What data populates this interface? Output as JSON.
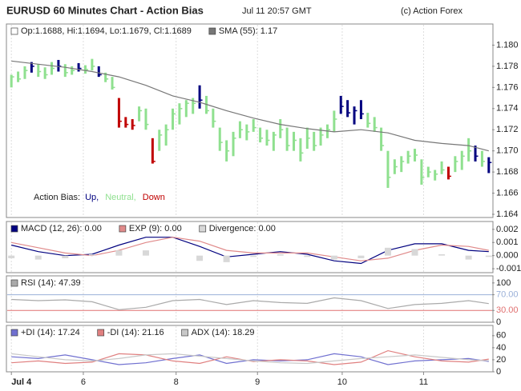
{
  "header": {
    "title": "EURUSD 60 Minutes Chart - Action Bias",
    "date": "Jul 11 20:57 GMT",
    "credit": "(c) Action Forex"
  },
  "x_axis": {
    "xlim": [
      -0.5,
      71.5
    ],
    "xticks": [
      {
        "value": 0,
        "label": "Jul 4"
      },
      {
        "value": 10.7,
        "label": "6"
      },
      {
        "value": 24.5,
        "label": "8"
      },
      {
        "value": 36.6,
        "label": "9"
      },
      {
        "value": 49.2,
        "label": "10"
      },
      {
        "value": 61.3,
        "label": "11"
      }
    ]
  },
  "chart_data": [
    {
      "type": "ohlc",
      "ohlc_label": "Op:1.1688, Hi:1.1694, Lo:1.1679, Cl:1.1689",
      "ylim": [
        1.1637,
        1.182
      ],
      "yticks": [
        1.164,
        1.166,
        1.168,
        {
          "value": 1.17,
          "label": "1.170"
        },
        1.172,
        1.174,
        1.176,
        1.178,
        {
          "value": 1.18,
          "label": "1.180"
        }
      ],
      "bias_legend": {
        "title": "Action Bias:",
        "entries": [
          {
            "label": "Up,",
            "color": "#00007f"
          },
          {
            "label": "Neutral,",
            "color": "#8fe08f"
          },
          {
            "label": "Down",
            "color": "#c00000"
          }
        ]
      },
      "low": [
        1.176,
        1.1765,
        1.1768,
        1.1774,
        1.177,
        1.1768,
        1.1772,
        1.1775,
        1.177,
        1.1772,
        1.1775,
        1.1773,
        1.1776,
        1.177,
        1.1765,
        1.1758,
        1.1722,
        1.1722,
        1.172,
        1.1728,
        1.172,
        1.1688,
        1.17,
        1.1705,
        1.172,
        1.1725,
        1.1732,
        1.1735,
        1.174,
        1.1735,
        1.1722,
        1.17,
        1.169,
        1.1695,
        1.1712,
        1.171,
        1.1718,
        1.1708,
        1.1705,
        1.17,
        1.1712,
        1.17,
        1.17,
        1.169,
        1.1702,
        1.17,
        1.1705,
        1.1712,
        1.1718,
        1.1735,
        1.1732,
        1.1725,
        1.173,
        1.1722,
        1.1718,
        1.17,
        1.1665,
        1.1678,
        1.168,
        1.1688,
        1.169,
        1.1668,
        1.1675,
        1.1672,
        1.1678,
        1.1673,
        1.168,
        1.1682,
        1.169,
        1.169,
        1.1685,
        1.1679
      ],
      "high": [
        1.1772,
        1.1775,
        1.178,
        1.1784,
        1.1782,
        1.1779,
        1.1784,
        1.1786,
        1.1782,
        1.178,
        1.1783,
        1.1781,
        1.1787,
        1.178,
        1.1774,
        1.177,
        1.175,
        1.1732,
        1.173,
        1.1742,
        1.174,
        1.1712,
        1.172,
        1.1725,
        1.174,
        1.1745,
        1.1748,
        1.175,
        1.1762,
        1.1752,
        1.174,
        1.1722,
        1.171,
        1.1718,
        1.1728,
        1.1725,
        1.173,
        1.1722,
        1.172,
        1.1718,
        1.173,
        1.1722,
        1.1718,
        1.1712,
        1.1722,
        1.1718,
        1.1722,
        1.1725,
        1.1738,
        1.1752,
        1.1748,
        1.1742,
        1.1748,
        1.1736,
        1.1732,
        1.1722,
        1.17,
        1.1692,
        1.1695,
        1.17,
        1.1702,
        1.1692,
        1.1685,
        1.1682,
        1.169,
        1.1685,
        1.1695,
        1.17,
        1.1712,
        1.1705,
        1.17,
        1.1694
      ],
      "close": [
        1.177,
        1.1768,
        1.1776,
        1.178,
        1.1775,
        1.1772,
        1.1778,
        1.178,
        1.1774,
        1.1776,
        1.1778,
        1.1777,
        1.178,
        1.1772,
        1.1768,
        1.176,
        1.1728,
        1.1725,
        1.1724,
        1.1738,
        1.1725,
        1.169,
        1.1715,
        1.172,
        1.1735,
        1.174,
        1.1745,
        1.1745,
        1.1748,
        1.1738,
        1.1728,
        1.1708,
        1.17,
        1.1712,
        1.172,
        1.1718,
        1.1722,
        1.1712,
        1.171,
        1.1715,
        1.172,
        1.1705,
        1.171,
        1.1698,
        1.1712,
        1.1705,
        1.1715,
        1.172,
        1.173,
        1.1742,
        1.1736,
        1.1738,
        1.1735,
        1.1726,
        1.1722,
        1.1705,
        1.1675,
        1.1685,
        1.169,
        1.1695,
        1.1696,
        1.1675,
        1.168,
        1.1678,
        1.1682,
        1.1676,
        1.169,
        1.1695,
        1.17,
        1.1695,
        1.169,
        1.1689
      ],
      "bias": [
        1,
        1,
        1,
        0,
        1,
        1,
        1,
        0,
        1,
        1,
        0,
        1,
        1,
        0,
        1,
        1,
        2,
        2,
        2,
        1,
        1,
        2,
        1,
        1,
        1,
        1,
        1,
        1,
        0,
        1,
        1,
        1,
        1,
        1,
        1,
        1,
        1,
        1,
        1,
        1,
        1,
        1,
        1,
        1,
        1,
        1,
        1,
        1,
        1,
        0,
        0,
        0,
        0,
        1,
        1,
        1,
        1,
        1,
        1,
        1,
        1,
        1,
        1,
        1,
        1,
        2,
        1,
        1,
        1,
        0,
        1,
        0
      ],
      "series": [
        {
          "name": "SMA (55): 1.17",
          "color": "#777777",
          "x": [
            0,
            4,
            8,
            12,
            16,
            20,
            24,
            28,
            32,
            36,
            40,
            44,
            48,
            52,
            56,
            60,
            64,
            68,
            71
          ],
          "values": [
            1.1785,
            1.1782,
            1.1779,
            1.1775,
            1.177,
            1.1762,
            1.1752,
            1.1746,
            1.1738,
            1.1731,
            1.1725,
            1.1721,
            1.1718,
            1.172,
            1.1717,
            1.171,
            1.1707,
            1.1705,
            1.17
          ]
        }
      ]
    },
    {
      "type": "line",
      "ylim": [
        -0.0013,
        0.0026
      ],
      "yticks": [
        -0.001,
        {
          "value": 0,
          "label": "0.000"
        },
        0.001,
        0.002
      ],
      "x": [
        0,
        4,
        8,
        12,
        16,
        20,
        24,
        28,
        32,
        36,
        40,
        44,
        48,
        52,
        56,
        60,
        64,
        68,
        71
      ],
      "series": [
        {
          "name": "MACD (12, 26): 0.00",
          "color": "#00007f",
          "kind": "line",
          "values": [
            0.0008,
            0.0003,
            0,
            0.0001,
            0.0008,
            0.0014,
            0.0014,
            0.0007,
            -0.0001,
            0.0001,
            0.0003,
            0.0001,
            -0.0004,
            -0.0006,
            0.0004,
            0.0009,
            0.0009,
            0.0004,
            0.0003
          ]
        },
        {
          "name": "EXP (9): 0.00",
          "color": "#e08a8a",
          "kind": "line",
          "values": [
            0.001,
            0.0006,
            0.0002,
            0,
            0.0004,
            0.001,
            0.0014,
            0.0011,
            0.0004,
            0.0002,
            0.0002,
            0.0002,
            -0.0001,
            -0.0004,
            -0.0002,
            0.0004,
            0.0008,
            0.0007,
            0.0004
          ]
        },
        {
          "name": "Divergence: 0.00",
          "color": "#d8d8d8",
          "kind": "bar",
          "values": [
            -0.0002,
            -0.0003,
            -0.0002,
            0.0001,
            0.0004,
            0.0004,
            0,
            -0.0004,
            -0.0005,
            -0.0001,
            0.0001,
            -0.0001,
            -0.0003,
            -0.0002,
            0.0006,
            0.0005,
            0.0001,
            -0.0003,
            -0.0001
          ]
        }
      ]
    },
    {
      "type": "line",
      "ylim": [
        0,
        118
      ],
      "yticks": [
        0,
        {
          "value": 30,
          "label": "30.00",
          "color": "#e07070"
        },
        {
          "value": 70,
          "label": "70.00",
          "color": "#9ab0d8"
        },
        100
      ],
      "x": [
        0,
        4,
        8,
        12,
        16,
        20,
        24,
        28,
        32,
        36,
        40,
        44,
        48,
        52,
        56,
        60,
        64,
        68,
        71
      ],
      "series": [
        {
          "name": "RSI (14): 47.39",
          "color": "#aaaaaa",
          "kind": "line",
          "values": [
            58,
            55,
            57,
            52,
            32,
            38,
            55,
            58,
            45,
            55,
            50,
            48,
            62,
            55,
            35,
            45,
            48,
            55,
            47.39
          ]
        }
      ]
    },
    {
      "type": "line",
      "ylim": [
        0,
        77
      ],
      "yticks": [
        0,
        20,
        40,
        60
      ],
      "x": [
        0,
        4,
        8,
        12,
        16,
        20,
        24,
        28,
        32,
        36,
        40,
        44,
        48,
        52,
        56,
        60,
        64,
        68,
        71
      ],
      "series": [
        {
          "name": "+DI (14): 17.24",
          "color": "#7070d0",
          "kind": "line",
          "values": [
            25,
            22,
            28,
            20,
            12,
            15,
            22,
            28,
            14,
            20,
            18,
            20,
            30,
            25,
            12,
            18,
            20,
            22,
            17.24
          ]
        },
        {
          "name": "-DI (14): 21.16",
          "color": "#e08080",
          "kind": "line",
          "values": [
            15,
            18,
            14,
            16,
            30,
            28,
            18,
            14,
            25,
            17,
            20,
            18,
            12,
            16,
            35,
            25,
            18,
            16,
            21.16
          ]
        },
        {
          "name": "ADX (14): 18.29",
          "color": "#c8c8c8",
          "kind": "line",
          "values": [
            30,
            25,
            20,
            18,
            22,
            28,
            30,
            26,
            22,
            18,
            15,
            14,
            18,
            22,
            25,
            28,
            24,
            20,
            18.29
          ]
        }
      ]
    }
  ]
}
